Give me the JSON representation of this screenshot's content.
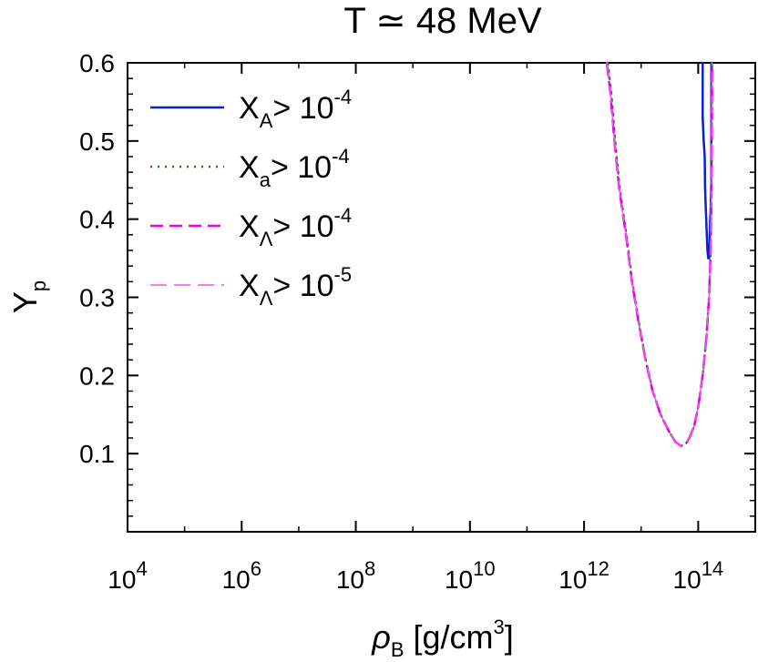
{
  "chart_data": {
    "type": "line",
    "title": "T ≃ 48 MeV",
    "xlabel": {
      "base": "ρ",
      "sub": "B",
      "rest": " [g/cm",
      "sup": "3",
      "end": "]"
    },
    "ylabel": {
      "base": "Y",
      "sub": "p"
    },
    "x_scale": "log10",
    "xlim": [
      10000,
      1000000000000000.0
    ],
    "ylim": [
      0.0,
      0.6
    ],
    "x_ticks": [
      {
        "value": 10000.0,
        "base": "10",
        "exp": "4"
      },
      {
        "value": 1000000.0,
        "base": "10",
        "exp": "6"
      },
      {
        "value": 100000000.0,
        "base": "10",
        "exp": "8"
      },
      {
        "value": 10000000000.0,
        "base": "10",
        "exp": "10"
      },
      {
        "value": 1000000000000.0,
        "base": "10",
        "exp": "12"
      },
      {
        "value": 100000000000000.0,
        "base": "10",
        "exp": "14"
      }
    ],
    "y_ticks": [
      {
        "value": 0.1,
        "label": "0.1"
      },
      {
        "value": 0.2,
        "label": "0.2"
      },
      {
        "value": 0.3,
        "label": "0.3"
      },
      {
        "value": 0.4,
        "label": "0.4"
      },
      {
        "value": 0.5,
        "label": "0.5"
      },
      {
        "value": 0.6,
        "label": "0.6"
      }
    ],
    "legend_position": "top-left",
    "grid": false,
    "series": [
      {
        "label": {
          "X": "X",
          "sub": "A",
          "gt": "> 10",
          "sup": "-4"
        },
        "color": "#0a1fd0",
        "style": "solid",
        "x": [
          120000000000000.0,
          120000000000000.0,
          125000000000000.0,
          130000000000000.0,
          132000000000000.0,
          135000000000000.0,
          140000000000000.0,
          145000000000000.0,
          150000000000000.0,
          155000000000000.0,
          160000000000000.0,
          162000000000000.0,
          165000000000000.0,
          170000000000000.0,
          170000000000000.0
        ],
        "y": [
          0.6,
          0.53,
          0.5,
          0.48,
          0.44,
          0.42,
          0.39,
          0.36,
          0.35,
          0.35,
          0.38,
          0.4,
          0.41,
          0.45,
          0.6
        ]
      },
      {
        "label": {
          "X": "X",
          "sub": "a",
          "gt": "> 10",
          "sup": "-4"
        },
        "color": "#1a7a1a",
        "style": "dotted",
        "x": [
          2600000000000.0,
          3000000000000.0,
          3500000000000.0,
          4200000000000.0,
          5500000000000.0,
          7000000000000.0,
          9000000000000.0,
          12000000000000.0,
          16000000000000.0,
          22000000000000.0,
          30000000000000.0,
          40000000000000.0,
          50000000000000.0,
          60000000000000.0,
          70000000000000.0,
          85000000000000.0,
          100000000000000.0,
          120000000000000.0,
          140000000000000.0,
          155000000000000.0,
          165000000000000.0,
          172000000000000.0,
          175000000000000.0
        ],
        "y": [
          0.6,
          0.56,
          0.5,
          0.44,
          0.38,
          0.32,
          0.27,
          0.22,
          0.18,
          0.15,
          0.13,
          0.115,
          0.11,
          0.112,
          0.12,
          0.135,
          0.16,
          0.2,
          0.25,
          0.3,
          0.36,
          0.45,
          0.6
        ]
      },
      {
        "label": {
          "X": "X",
          "sub": "Λ",
          "gt": "> 10",
          "sup": "-4"
        },
        "color": "#ee00ee",
        "style": "dashed-long",
        "x": [
          2500000000000.0,
          2900000000000.0,
          3400000000000.0,
          4100000000000.0,
          5400000000000.0,
          6900000000000.0,
          8900000000000.0,
          11900000000000.0,
          15900000000000.0,
          21900000000000.0,
          29900000000000.0,
          39900000000000.0,
          49900000000000.0,
          59900000000000.0,
          69900000000000.0,
          84900000000000.0,
          100000000000000.0,
          120000000000000.0,
          140000000000000.0,
          155000000000000.0,
          165000000000000.0,
          172000000000000.0,
          175000000000000.0
        ],
        "y": [
          0.6,
          0.56,
          0.5,
          0.44,
          0.38,
          0.32,
          0.27,
          0.22,
          0.18,
          0.15,
          0.13,
          0.115,
          0.11,
          0.112,
          0.12,
          0.135,
          0.16,
          0.2,
          0.25,
          0.3,
          0.36,
          0.45,
          0.6
        ]
      },
      {
        "label": {
          "X": "X",
          "sub": "Λ",
          "gt": "> 10",
          "sup": "-5"
        },
        "color": "#ee55ee",
        "style": "dashed-thin",
        "x": [
          2500000000000.0,
          2900000000000.0,
          3400000000000.0,
          4100000000000.0,
          5400000000000.0,
          6900000000000.0,
          8900000000000.0,
          11900000000000.0,
          15900000000000.0,
          21900000000000.0,
          29900000000000.0,
          39900000000000.0,
          49900000000000.0,
          59900000000000.0,
          69900000000000.0,
          84900000000000.0,
          100000000000000.0,
          120000000000000.0,
          140000000000000.0,
          155000000000000.0,
          165000000000000.0,
          172000000000000.0,
          175000000000000.0
        ],
        "y": [
          0.6,
          0.56,
          0.5,
          0.44,
          0.38,
          0.32,
          0.27,
          0.22,
          0.18,
          0.15,
          0.13,
          0.115,
          0.11,
          0.112,
          0.12,
          0.135,
          0.16,
          0.2,
          0.25,
          0.3,
          0.36,
          0.45,
          0.6
        ]
      }
    ]
  }
}
